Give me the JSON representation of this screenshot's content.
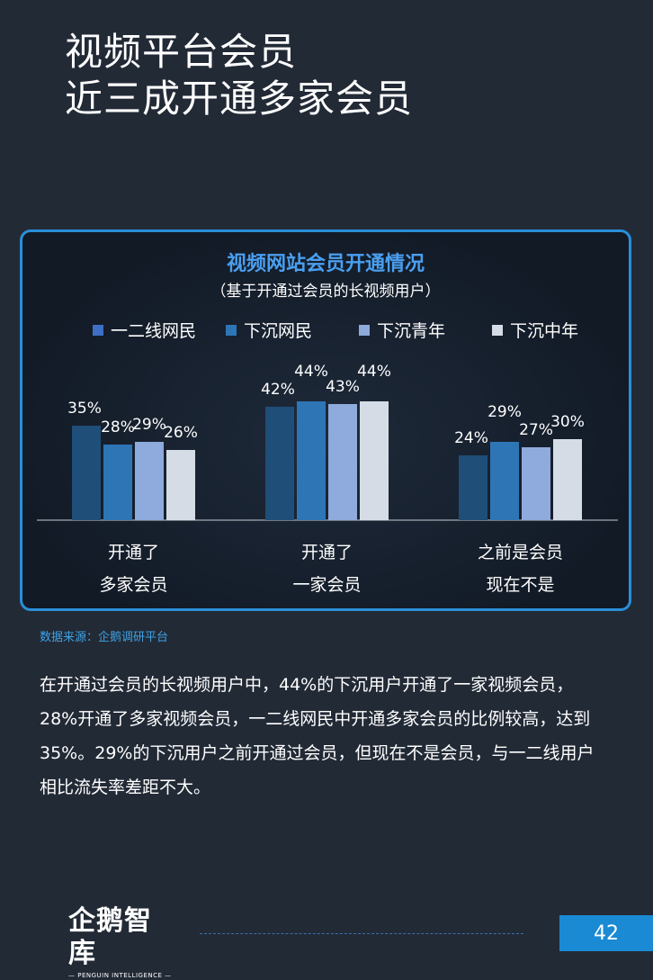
{
  "page": {
    "title_line1": "视频平台会员",
    "title_line2": "近三成开通多家会员",
    "source": "数据来源：企鹅调研平台",
    "body_text": "在开通过会员的长视频用户中，44%的下沉用户开通了一家视频会员，28%开通了多家视频会员，一二线网民中开通多家会员的比例较高，达到35%。29%的下沉用户之前开通过会员，但现在不是会员，与一二线用户相比流失率差距不大。",
    "logo_main": "企鹅智库",
    "logo_sub": "— PENGUIN INTELLIGENCE —",
    "page_number": "42"
  },
  "chart_data": {
    "type": "bar",
    "title": "视频网站会员开通情况",
    "subtitle": "（基于开通过会员的长视频用户）",
    "categories": [
      [
        "开通了",
        "多家会员"
      ],
      [
        "开通了",
        "一家会员"
      ],
      [
        "之前是会员",
        "现在不是"
      ]
    ],
    "series": [
      {
        "name": "一二线网民",
        "color": "#1f4e79",
        "legend_color": "#3d6fc6",
        "values": [
          35,
          42,
          24
        ]
      },
      {
        "name": "下沉网民",
        "color": "#2e75b6",
        "legend_color": "#2e75b6",
        "values": [
          28,
          44,
          29
        ]
      },
      {
        "name": "下沉青年",
        "color": "#8faadc",
        "legend_color": "#8faadc",
        "values": [
          29,
          43,
          27
        ]
      },
      {
        "name": "下沉中年",
        "color": "#d6dce5",
        "legend_color": "#d6dce5",
        "values": [
          26,
          44,
          30
        ]
      }
    ],
    "value_suffix": "%",
    "ylim": [
      0,
      50
    ],
    "grid": false,
    "legend_position": "top"
  }
}
